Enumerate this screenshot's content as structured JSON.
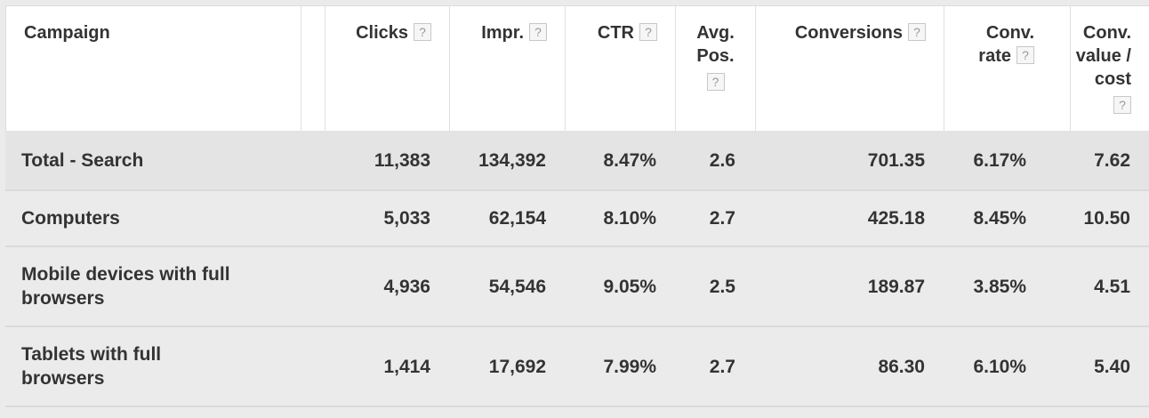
{
  "columns": {
    "campaign": "Campaign",
    "clicks": "Clicks",
    "impr": "Impr.",
    "ctr": "CTR",
    "avg_pos_l1": "Avg.",
    "avg_pos_l2": "Pos.",
    "conversions": "Conversions",
    "conv_rate_l1": "Conv.",
    "conv_rate_l2": "rate",
    "conv_value_l1": "Conv.",
    "conv_value_l2": "value /",
    "conv_value_l3": "cost",
    "help_glyph": "?"
  },
  "rows": [
    {
      "campaign": [
        "Total - Search"
      ],
      "clicks": "11,383",
      "impr": "134,392",
      "ctr": "8.47%",
      "avg_pos": "2.6",
      "conversions": "701.35",
      "conv_rate": "6.17%",
      "conv_value_cost": "7.62"
    },
    {
      "campaign": [
        "Computers"
      ],
      "clicks": "5,033",
      "impr": "62,154",
      "ctr": "8.10%",
      "avg_pos": "2.7",
      "conversions": "425.18",
      "conv_rate": "8.45%",
      "conv_value_cost": "10.50"
    },
    {
      "campaign": [
        "Mobile devices with full",
        "browsers"
      ],
      "clicks": "4,936",
      "impr": "54,546",
      "ctr": "9.05%",
      "avg_pos": "2.5",
      "conversions": "189.87",
      "conv_rate": "3.85%",
      "conv_value_cost": "4.51"
    },
    {
      "campaign": [
        "Tablets with full",
        "browsers"
      ],
      "clicks": "1,414",
      "impr": "17,692",
      "ctr": "7.99%",
      "avg_pos": "2.7",
      "conversions": "86.30",
      "conv_rate": "6.10%",
      "conv_value_cost": "5.40"
    }
  ]
}
